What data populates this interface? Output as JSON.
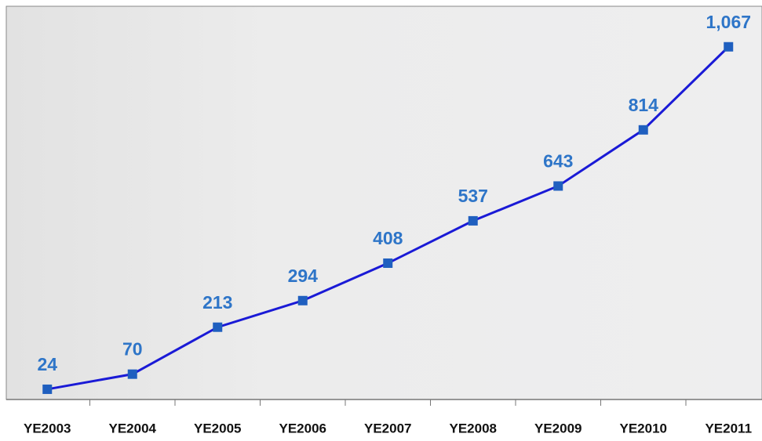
{
  "chart_data": {
    "type": "line",
    "categories": [
      "YE2003",
      "YE2004",
      "YE2005",
      "YE2006",
      "YE2007",
      "YE2008",
      "YE2009",
      "YE2010",
      "YE2011"
    ],
    "values": [
      24,
      70,
      213,
      294,
      408,
      537,
      643,
      814,
      1067
    ],
    "value_labels": [
      "24",
      "70",
      "213",
      "294",
      "408",
      "537",
      "643",
      "814",
      "1,067"
    ],
    "color": "#1a1ad6",
    "marker_color": "#1f5fbf",
    "label_color": "#2e75c8",
    "ylim": [
      0,
      1200
    ]
  }
}
